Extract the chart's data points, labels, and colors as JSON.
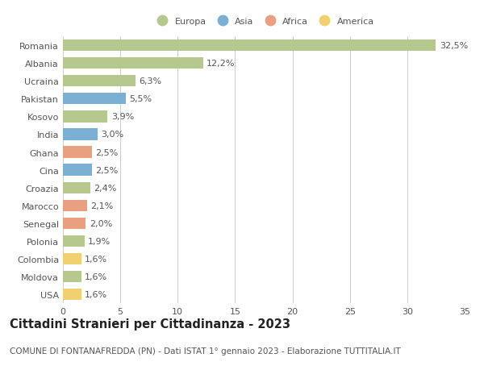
{
  "countries": [
    "Romania",
    "Albania",
    "Ucraina",
    "Pakistan",
    "Kosovo",
    "India",
    "Ghana",
    "Cina",
    "Croazia",
    "Marocco",
    "Senegal",
    "Polonia",
    "Colombia",
    "Moldova",
    "USA"
  ],
  "values": [
    32.5,
    12.2,
    6.3,
    5.5,
    3.9,
    3.0,
    2.5,
    2.5,
    2.4,
    2.1,
    2.0,
    1.9,
    1.6,
    1.6,
    1.6
  ],
  "labels": [
    "32,5%",
    "12,2%",
    "6,3%",
    "5,5%",
    "3,9%",
    "3,0%",
    "2,5%",
    "2,5%",
    "2,4%",
    "2,1%",
    "2,0%",
    "1,9%",
    "1,6%",
    "1,6%",
    "1,6%"
  ],
  "continents": [
    "Europa",
    "Europa",
    "Europa",
    "Asia",
    "Europa",
    "Asia",
    "Africa",
    "Asia",
    "Europa",
    "Africa",
    "Africa",
    "Europa",
    "America",
    "Europa",
    "America"
  ],
  "continent_colors": {
    "Europa": "#b5c98e",
    "Asia": "#7bafd4",
    "Africa": "#e8a080",
    "America": "#f0d070"
  },
  "legend_order": [
    "Europa",
    "Asia",
    "Africa",
    "America"
  ],
  "title": "Cittadini Stranieri per Cittadinanza - 2023",
  "subtitle": "COMUNE DI FONTANAFREDDA (PN) - Dati ISTAT 1° gennaio 2023 - Elaborazione TUTTITALIA.IT",
  "xlim": [
    0,
    35
  ],
  "xticks": [
    0,
    5,
    10,
    15,
    20,
    25,
    30,
    35
  ],
  "background_color": "#ffffff",
  "grid_color": "#cccccc",
  "bar_height": 0.65,
  "label_fontsize": 8,
  "tick_fontsize": 8,
  "title_fontsize": 10.5,
  "subtitle_fontsize": 7.5
}
